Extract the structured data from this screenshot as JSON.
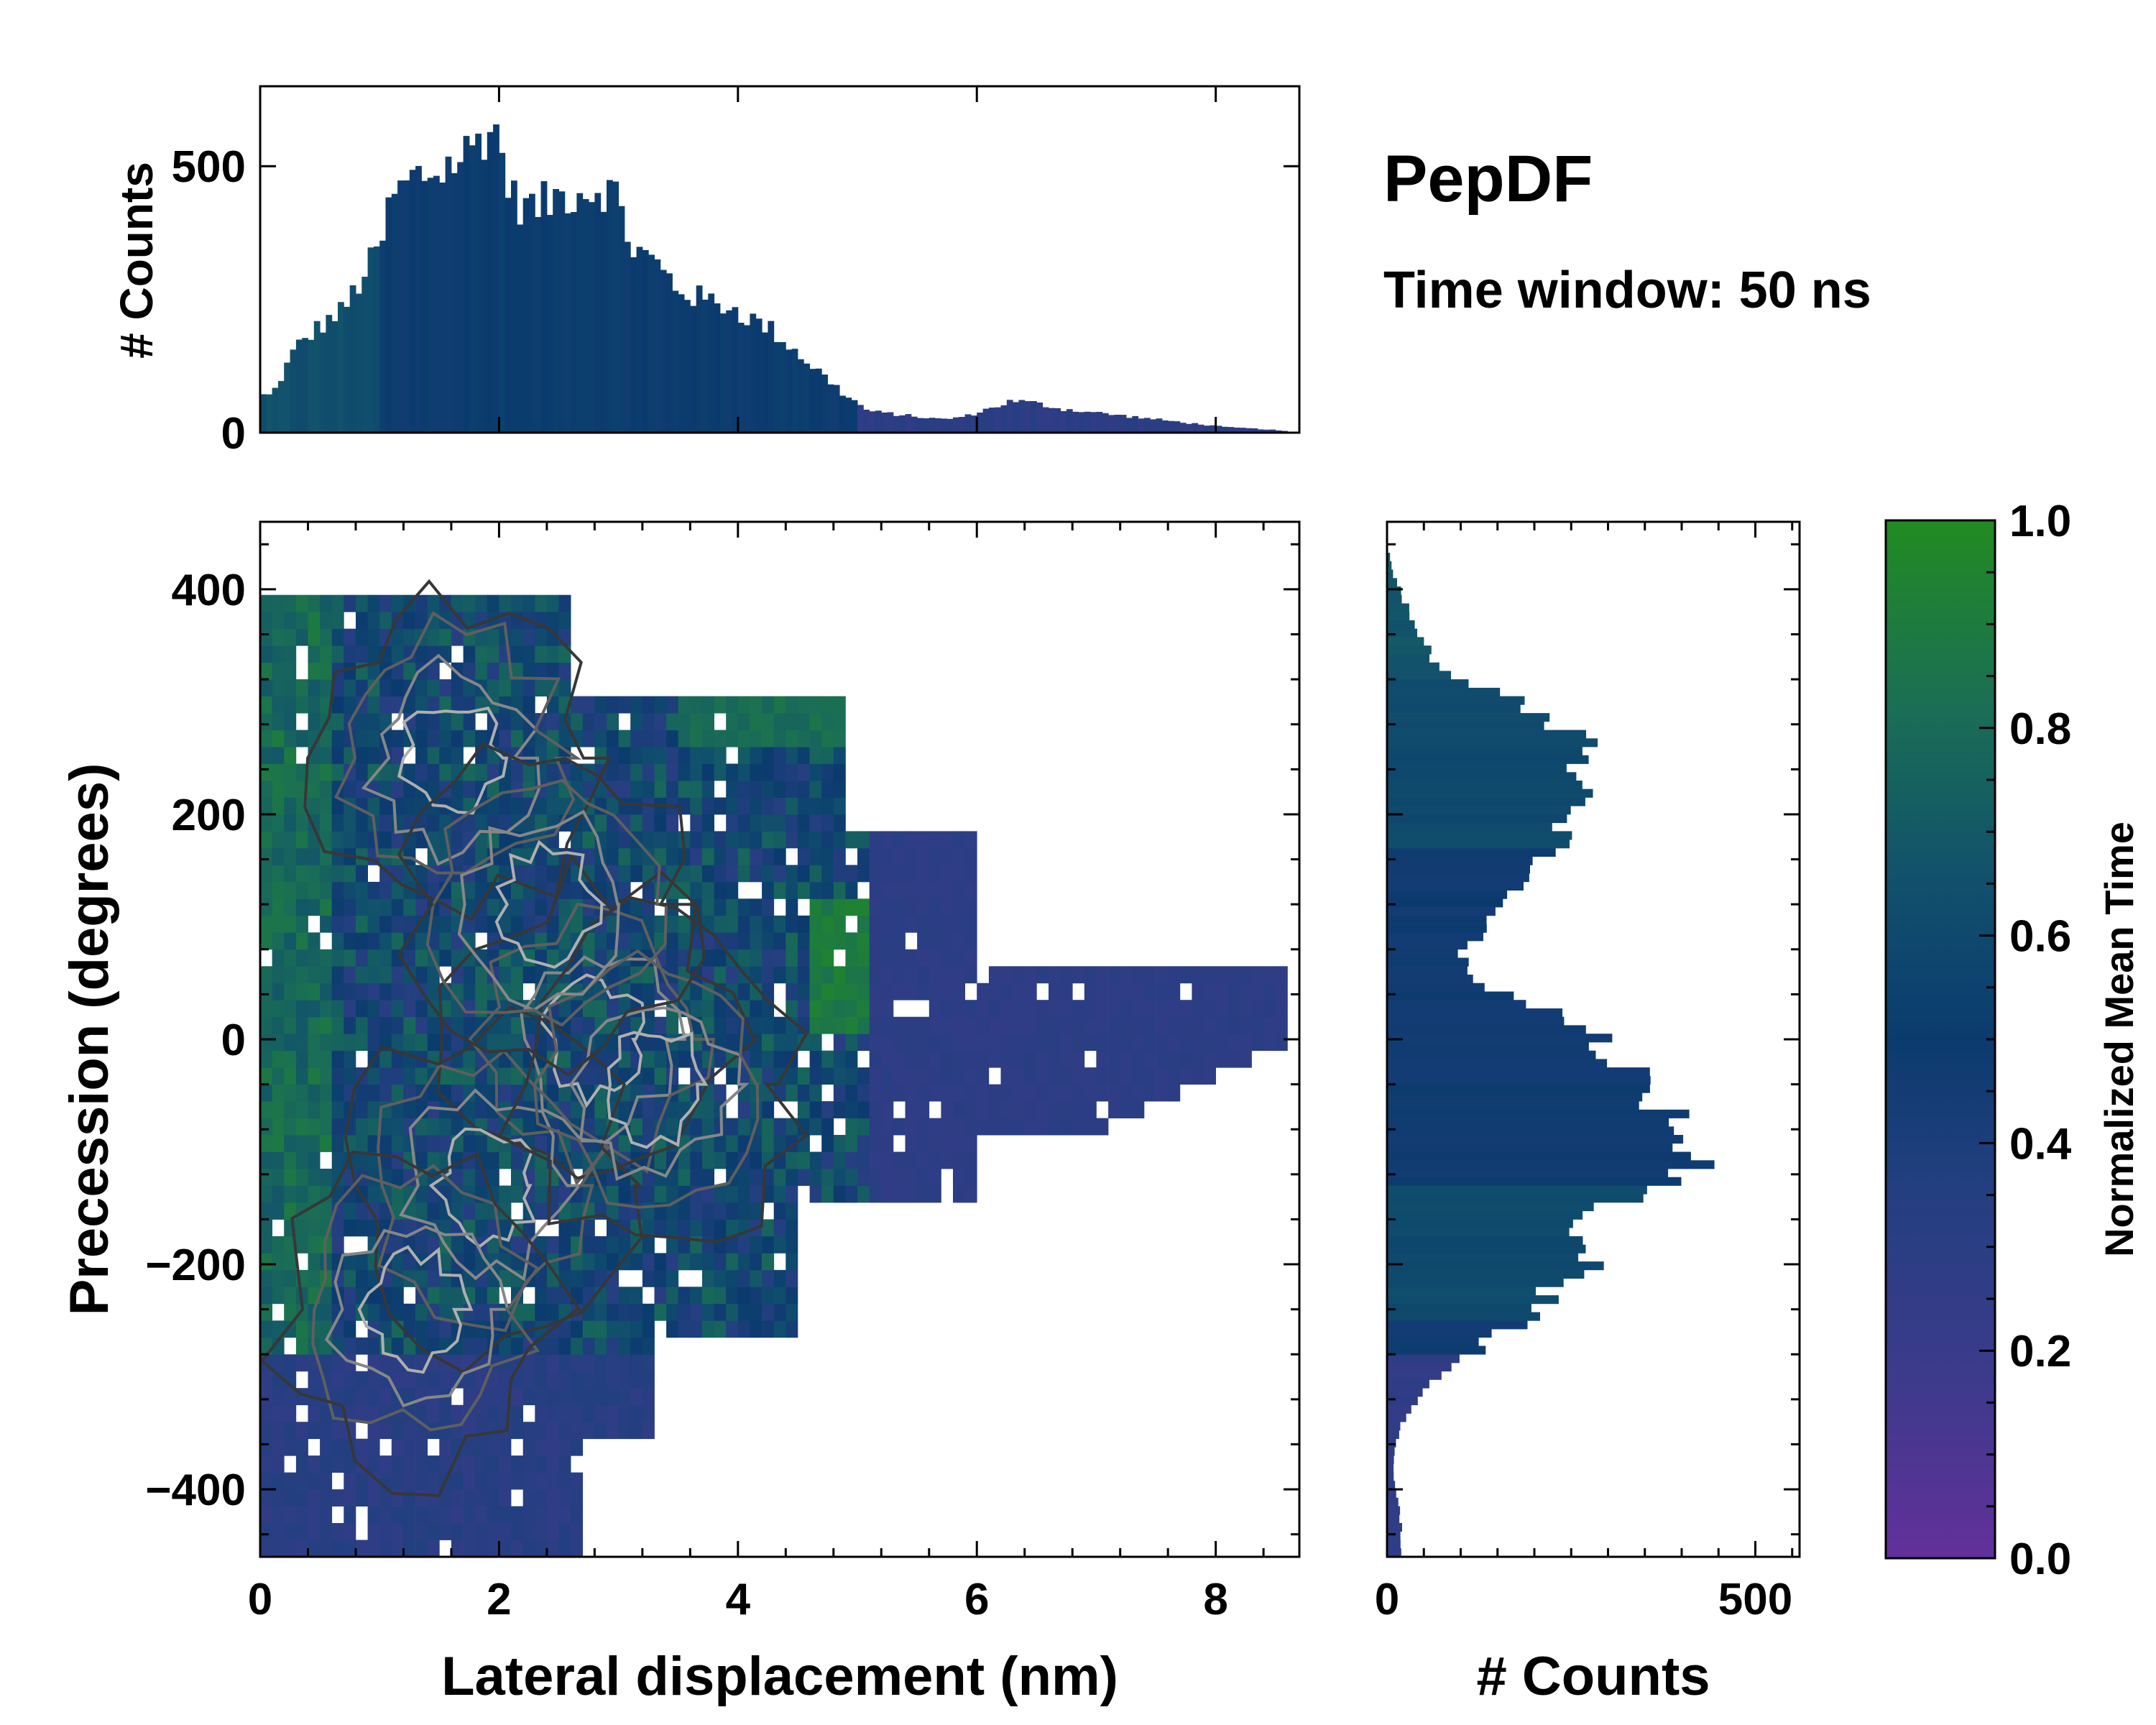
{
  "chart_data": [
    {
      "id": "top-histogram",
      "type": "bar",
      "title": "",
      "xlabel": "",
      "ylabel": "# Counts",
      "xlim": [
        0,
        8.7
      ],
      "ylim": [
        0,
        650
      ],
      "yticks": [
        0,
        500
      ],
      "bin_width": 0.05,
      "x": [
        0.1,
        0.3,
        0.5,
        0.7,
        0.9,
        1.0,
        1.1,
        1.3,
        1.5,
        1.7,
        1.8,
        1.9,
        2.0,
        2.1,
        2.3,
        2.5,
        2.7,
        2.9,
        3.0,
        3.1,
        3.3,
        3.5,
        3.7,
        3.9,
        4.1,
        4.3,
        4.5,
        4.7,
        4.9,
        5.1,
        5.3,
        5.5,
        5.7,
        5.9,
        6.1,
        6.3,
        6.5,
        6.7,
        6.9,
        7.1,
        7.3,
        7.5,
        7.7,
        7.9,
        8.1,
        8.3,
        8.5,
        8.7
      ],
      "values": [
        70,
        160,
        200,
        230,
        310,
        340,
        440,
        480,
        490,
        520,
        540,
        575,
        555,
        440,
        420,
        445,
        455,
        460,
        440,
        350,
        320,
        270,
        250,
        240,
        215,
        190,
        150,
        110,
        70,
        40,
        35,
        30,
        25,
        30,
        45,
        60,
        55,
        45,
        40,
        35,
        30,
        25,
        20,
        15,
        10,
        8,
        5,
        0
      ]
    },
    {
      "id": "joint-map",
      "type": "heatmap",
      "title": "PepDF",
      "subtitle": "Time window: 50 ns",
      "xlabel": "Lateral displacement (nm)",
      "ylabel": "Precession (degrees)",
      "xlim": [
        0,
        8.7
      ],
      "ylim": [
        -460,
        460
      ],
      "xticks": [
        0,
        2,
        4,
        6,
        8
      ],
      "yticks": [
        -400,
        -200,
        0,
        200,
        400
      ],
      "ytick_labels": [
        "−400",
        "−200",
        "0",
        "200",
        "400"
      ],
      "color_variable": "Normalized Mean Time"
    },
    {
      "id": "right-histogram",
      "type": "bar",
      "orientation": "horizontal",
      "xlabel": "# Counts",
      "xlim": [
        0,
        560
      ],
      "xticks": [
        0,
        500
      ],
      "ylim": [
        -460,
        460
      ],
      "y": [
        -430,
        -400,
        -370,
        -340,
        -310,
        -280,
        -250,
        -220,
        -190,
        -160,
        -130,
        -100,
        -70,
        -40,
        -10,
        20,
        50,
        80,
        110,
        140,
        170,
        200,
        230,
        260,
        290,
        320,
        350,
        380,
        410,
        440
      ],
      "values": [
        20,
        10,
        10,
        20,
        50,
        110,
        190,
        230,
        290,
        260,
        380,
        420,
        400,
        370,
        310,
        260,
        120,
        100,
        150,
        200,
        220,
        250,
        280,
        270,
        220,
        90,
        50,
        30,
        10,
        0
      ]
    },
    {
      "id": "colorbar",
      "type": "colorbar",
      "label": "Normalized Mean Time",
      "range": [
        0.0,
        1.0
      ],
      "ticks": [
        0.0,
        0.2,
        0.4,
        0.6,
        0.8,
        1.0
      ],
      "tick_labels": [
        "0.0",
        "0.2",
        "0.4",
        "0.6",
        "0.8",
        "1.0"
      ],
      "colors": [
        "#63309a",
        "#3d3a8c",
        "#243f80",
        "#0b3b6e",
        "#11506d",
        "#1a6e55",
        "#228b22"
      ]
    }
  ]
}
